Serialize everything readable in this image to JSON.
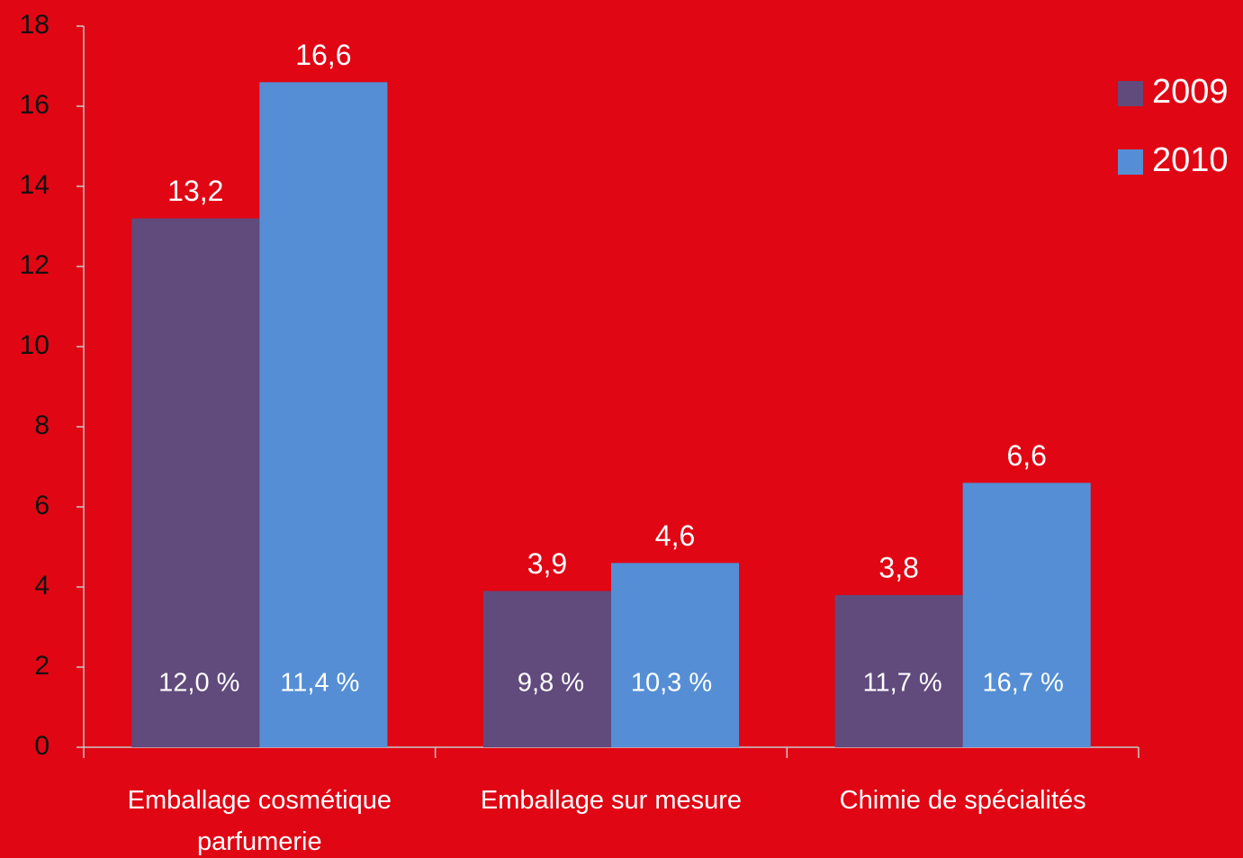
{
  "chart_data": {
    "type": "bar",
    "categories": [
      "Emballage cosmétique parfumerie",
      "Emballage sur mesure",
      "Chimie de spécialités"
    ],
    "series": [
      {
        "name": "2009",
        "color": "#614a7c",
        "values": [
          13.2,
          3.9,
          3.8
        ],
        "value_labels": [
          "13,2",
          "3,9",
          "3,8"
        ],
        "inner_labels": [
          "12,0 %",
          "9,8 %",
          "11,7 %"
        ]
      },
      {
        "name": "2010",
        "color": "#558ed5",
        "values": [
          16.6,
          4.6,
          6.6
        ],
        "value_labels": [
          "16,6",
          "4,6",
          "6,6"
        ],
        "inner_labels": [
          "11,4 %",
          "10,3 %",
          "16,7 %"
        ]
      }
    ],
    "ylim": [
      0,
      18
    ],
    "yticks": [
      0,
      2,
      4,
      6,
      8,
      10,
      12,
      14,
      16,
      18
    ],
    "grid": false,
    "legend": "right",
    "background": "#e00614"
  }
}
